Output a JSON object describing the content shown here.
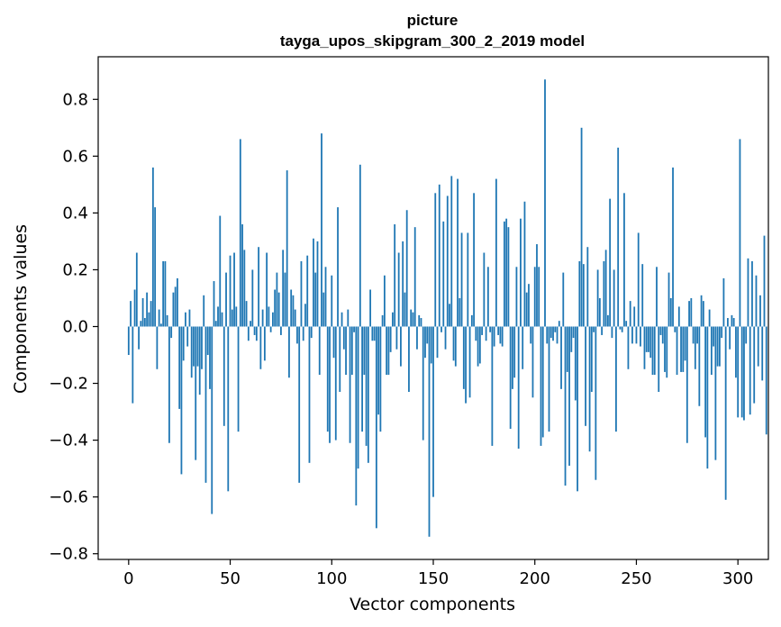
{
  "chart_data": {
    "type": "bar",
    "title": "picture",
    "subtitle": "tayga_upos_skipgram_300_2_2019 model",
    "xlabel": "Vector components",
    "ylabel": "Components values",
    "xlim": [
      -15,
      315
    ],
    "ylim": [
      -0.82,
      0.95
    ],
    "xticks": [
      0,
      50,
      100,
      150,
      200,
      250,
      300
    ],
    "yticks": [
      -0.8,
      -0.6,
      -0.4,
      -0.2,
      0.0,
      0.2,
      0.4,
      0.6,
      0.8
    ],
    "ytick_labels": [
      "−0.8",
      "−0.6",
      "−0.4",
      "−0.2",
      "0.0",
      "0.2",
      "0.4",
      "0.6",
      "0.8"
    ],
    "xtick_labels": [
      "0",
      "50",
      "100",
      "150",
      "200",
      "250",
      "300"
    ],
    "grid": false,
    "bar_color": "#1f77b4",
    "values": [
      -0.1,
      0.09,
      -0.27,
      0.13,
      0.26,
      -0.08,
      0.02,
      0.1,
      0.03,
      0.12,
      0.05,
      0.09,
      0.56,
      0.42,
      -0.15,
      0.06,
      0.01,
      0.23,
      0.23,
      0.04,
      -0.41,
      -0.04,
      0.12,
      0.14,
      0.17,
      -0.29,
      -0.52,
      -0.12,
      0.05,
      -0.07,
      0.06,
      -0.18,
      -0.14,
      -0.47,
      -0.14,
      -0.24,
      -0.15,
      0.11,
      -0.55,
      -0.1,
      -0.22,
      -0.66,
      0.16,
      0.02,
      0.07,
      0.39,
      0.05,
      -0.35,
      0.19,
      -0.58,
      0.25,
      0.06,
      0.26,
      0.07,
      -0.37,
      0.66,
      0.36,
      0.27,
      0.09,
      -0.05,
      0.02,
      0.2,
      -0.03,
      -0.05,
      0.28,
      -0.15,
      0.06,
      -0.12,
      0.26,
      0.07,
      -0.02,
      0.05,
      0.13,
      0.19,
      0.12,
      -0.03,
      0.27,
      0.19,
      0.55,
      -0.18,
      0.13,
      0.11,
      0.06,
      -0.06,
      -0.55,
      0.23,
      -0.05,
      0.08,
      0.25,
      -0.48,
      -0.04,
      0.31,
      0.19,
      0.3,
      -0.17,
      0.68,
      0.12,
      0.21,
      -0.37,
      -0.41,
      0.18,
      -0.11,
      -0.4,
      0.42,
      -0.23,
      0.05,
      -0.08,
      -0.17,
      0.06,
      -0.41,
      -0.17,
      -0.02,
      -0.63,
      -0.5,
      0.57,
      -0.37,
      -0.17,
      -0.42,
      -0.48,
      0.13,
      -0.05,
      -0.05,
      -0.71,
      -0.31,
      -0.37,
      0.04,
      0.18,
      -0.17,
      -0.17,
      -0.09,
      0.05,
      0.36,
      -0.08,
      0.26,
      -0.14,
      0.3,
      0.12,
      0.41,
      -0.23,
      0.06,
      0.05,
      0.35,
      -0.08,
      0.04,
      0.03,
      -0.4,
      -0.11,
      -0.06,
      -0.74,
      -0.13,
      -0.6,
      0.47,
      -0.11,
      0.5,
      -0.02,
      0.37,
      -0.08,
      0.46,
      0.08,
      0.53,
      -0.12,
      -0.14,
      0.52,
      0.1,
      0.33,
      -0.22,
      -0.27,
      0.33,
      -0.25,
      0.04,
      0.47,
      -0.05,
      -0.14,
      -0.13,
      -0.03,
      0.26,
      -0.05,
      0.21,
      -0.02,
      -0.42,
      -0.07,
      0.52,
      -0.03,
      -0.06,
      -0.07,
      0.37,
      0.38,
      0.35,
      -0.36,
      -0.22,
      -0.18,
      0.21,
      -0.43,
      0.38,
      -0.15,
      0.44,
      0.12,
      0.15,
      -0.06,
      -0.25,
      0.21,
      0.29,
      0.21,
      -0.42,
      -0.39,
      0.87,
      -0.06,
      -0.37,
      -0.04,
      -0.05,
      -0.02,
      -0.06,
      0.02,
      -0.22,
      0.19,
      -0.56,
      -0.16,
      -0.49,
      -0.09,
      -0.04,
      -0.26,
      -0.58,
      0.23,
      0.7,
      0.22,
      -0.35,
      0.28,
      -0.44,
      -0.23,
      -0.02,
      -0.54,
      0.2,
      0.1,
      -0.03,
      0.23,
      0.27,
      0.04,
      0.45,
      -0.04,
      0.2,
      -0.37,
      0.63,
      -0.01,
      -0.02,
      0.47,
      0.02,
      -0.15,
      0.09,
      -0.06,
      0.07,
      -0.06,
      0.33,
      -0.07,
      0.22,
      -0.15,
      -0.09,
      -0.09,
      -0.11,
      -0.17,
      -0.17,
      0.21,
      -0.23,
      -0.03,
      -0.06,
      -0.16,
      -0.18,
      0.19,
      0.1,
      0.56,
      -0.02,
      -0.17,
      0.07,
      -0.16,
      -0.16,
      -0.12,
      -0.41,
      0.09,
      0.1,
      -0.06,
      -0.15,
      -0.06,
      -0.28,
      0.11,
      0.09,
      -0.39,
      -0.5,
      0.06,
      -0.17,
      -0.07,
      -0.47,
      -0.14,
      -0.14,
      -0.04,
      0.17,
      -0.61,
      0.03,
      -0.08,
      0.04,
      0.03,
      -0.18,
      -0.32,
      0.66,
      -0.32,
      -0.33,
      -0.06,
      0.24,
      -0.31,
      0.23,
      -0.27,
      0.18,
      -0.14,
      0.11,
      -0.19,
      0.32,
      -0.38
    ]
  }
}
